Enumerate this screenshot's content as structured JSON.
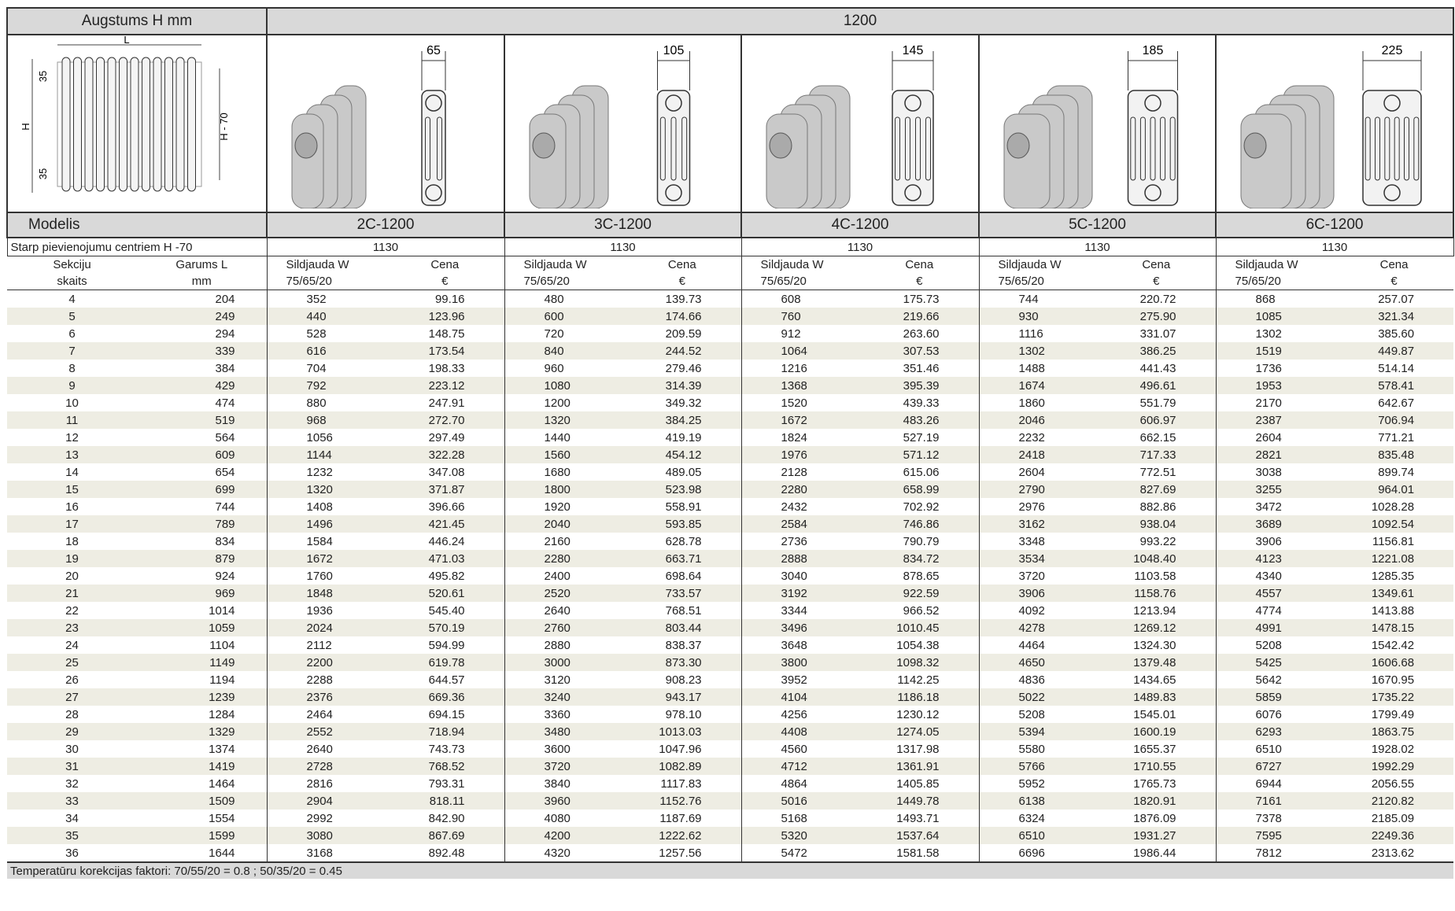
{
  "header": {
    "height_label": "Augstums H mm",
    "height_value": "1200"
  },
  "diagram": {
    "length": "L",
    "height": "H",
    "centers": "H - 70",
    "top": "35",
    "bottom": "35"
  },
  "models_label": "Modelis",
  "centers_label": "Starp pievienojumu centriem H -70",
  "columns": {
    "sections": [
      "Sekciju",
      "skaits"
    ],
    "length": [
      "Garums L",
      "mm"
    ],
    "power": [
      "Sildjauda W",
      "75/65/20"
    ],
    "price": [
      "Cena",
      "€"
    ]
  },
  "models": [
    {
      "name": "2C-1200",
      "depth": "65",
      "centers": "1130"
    },
    {
      "name": "3C-1200",
      "depth": "105",
      "centers": "1130"
    },
    {
      "name": "4C-1200",
      "depth": "145",
      "centers": "1130"
    },
    {
      "name": "5C-1200",
      "depth": "185",
      "centers": "1130"
    },
    {
      "name": "6C-1200",
      "depth": "225",
      "centers": "1130"
    }
  ],
  "rows": [
    [
      "4",
      "204",
      "352",
      "99.16",
      "480",
      "139.73",
      "608",
      "175.73",
      "744",
      "220.72",
      "868",
      "257.07"
    ],
    [
      "5",
      "249",
      "440",
      "123.96",
      "600",
      "174.66",
      "760",
      "219.66",
      "930",
      "275.90",
      "1085",
      "321.34"
    ],
    [
      "6",
      "294",
      "528",
      "148.75",
      "720",
      "209.59",
      "912",
      "263.60",
      "1116",
      "331.07",
      "1302",
      "385.60"
    ],
    [
      "7",
      "339",
      "616",
      "173.54",
      "840",
      "244.52",
      "1064",
      "307.53",
      "1302",
      "386.25",
      "1519",
      "449.87"
    ],
    [
      "8",
      "384",
      "704",
      "198.33",
      "960",
      "279.46",
      "1216",
      "351.46",
      "1488",
      "441.43",
      "1736",
      "514.14"
    ],
    [
      "9",
      "429",
      "792",
      "223.12",
      "1080",
      "314.39",
      "1368",
      "395.39",
      "1674",
      "496.61",
      "1953",
      "578.41"
    ],
    [
      "10",
      "474",
      "880",
      "247.91",
      "1200",
      "349.32",
      "1520",
      "439.33",
      "1860",
      "551.79",
      "2170",
      "642.67"
    ],
    [
      "11",
      "519",
      "968",
      "272.70",
      "1320",
      "384.25",
      "1672",
      "483.26",
      "2046",
      "606.97",
      "2387",
      "706.94"
    ],
    [
      "12",
      "564",
      "1056",
      "297.49",
      "1440",
      "419.19",
      "1824",
      "527.19",
      "2232",
      "662.15",
      "2604",
      "771.21"
    ],
    [
      "13",
      "609",
      "1144",
      "322.28",
      "1560",
      "454.12",
      "1976",
      "571.12",
      "2418",
      "717.33",
      "2821",
      "835.48"
    ],
    [
      "14",
      "654",
      "1232",
      "347.08",
      "1680",
      "489.05",
      "2128",
      "615.06",
      "2604",
      "772.51",
      "3038",
      "899.74"
    ],
    [
      "15",
      "699",
      "1320",
      "371.87",
      "1800",
      "523.98",
      "2280",
      "658.99",
      "2790",
      "827.69",
      "3255",
      "964.01"
    ],
    [
      "16",
      "744",
      "1408",
      "396.66",
      "1920",
      "558.91",
      "2432",
      "702.92",
      "2976",
      "882.86",
      "3472",
      "1028.28"
    ],
    [
      "17",
      "789",
      "1496",
      "421.45",
      "2040",
      "593.85",
      "2584",
      "746.86",
      "3162",
      "938.04",
      "3689",
      "1092.54"
    ],
    [
      "18",
      "834",
      "1584",
      "446.24",
      "2160",
      "628.78",
      "2736",
      "790.79",
      "3348",
      "993.22",
      "3906",
      "1156.81"
    ],
    [
      "19",
      "879",
      "1672",
      "471.03",
      "2280",
      "663.71",
      "2888",
      "834.72",
      "3534",
      "1048.40",
      "4123",
      "1221.08"
    ],
    [
      "20",
      "924",
      "1760",
      "495.82",
      "2400",
      "698.64",
      "3040",
      "878.65",
      "3720",
      "1103.58",
      "4340",
      "1285.35"
    ],
    [
      "21",
      "969",
      "1848",
      "520.61",
      "2520",
      "733.57",
      "3192",
      "922.59",
      "3906",
      "1158.76",
      "4557",
      "1349.61"
    ],
    [
      "22",
      "1014",
      "1936",
      "545.40",
      "2640",
      "768.51",
      "3344",
      "966.52",
      "4092",
      "1213.94",
      "4774",
      "1413.88"
    ],
    [
      "23",
      "1059",
      "2024",
      "570.19",
      "2760",
      "803.44",
      "3496",
      "1010.45",
      "4278",
      "1269.12",
      "4991",
      "1478.15"
    ],
    [
      "24",
      "1104",
      "2112",
      "594.99",
      "2880",
      "838.37",
      "3648",
      "1054.38",
      "4464",
      "1324.30",
      "5208",
      "1542.42"
    ],
    [
      "25",
      "1149",
      "2200",
      "619.78",
      "3000",
      "873.30",
      "3800",
      "1098.32",
      "4650",
      "1379.48",
      "5425",
      "1606.68"
    ],
    [
      "26",
      "1194",
      "2288",
      "644.57",
      "3120",
      "908.23",
      "3952",
      "1142.25",
      "4836",
      "1434.65",
      "5642",
      "1670.95"
    ],
    [
      "27",
      "1239",
      "2376",
      "669.36",
      "3240",
      "943.17",
      "4104",
      "1186.18",
      "5022",
      "1489.83",
      "5859",
      "1735.22"
    ],
    [
      "28",
      "1284",
      "2464",
      "694.15",
      "3360",
      "978.10",
      "4256",
      "1230.12",
      "5208",
      "1545.01",
      "6076",
      "1799.49"
    ],
    [
      "29",
      "1329",
      "2552",
      "718.94",
      "3480",
      "1013.03",
      "4408",
      "1274.05",
      "5394",
      "1600.19",
      "6293",
      "1863.75"
    ],
    [
      "30",
      "1374",
      "2640",
      "743.73",
      "3600",
      "1047.96",
      "4560",
      "1317.98",
      "5580",
      "1655.37",
      "6510",
      "1928.02"
    ],
    [
      "31",
      "1419",
      "2728",
      "768.52",
      "3720",
      "1082.89",
      "4712",
      "1361.91",
      "5766",
      "1710.55",
      "6727",
      "1992.29"
    ],
    [
      "32",
      "1464",
      "2816",
      "793.31",
      "3840",
      "1117.83",
      "4864",
      "1405.85",
      "5952",
      "1765.73",
      "6944",
      "2056.55"
    ],
    [
      "33",
      "1509",
      "2904",
      "818.11",
      "3960",
      "1152.76",
      "5016",
      "1449.78",
      "6138",
      "1820.91",
      "7161",
      "2120.82"
    ],
    [
      "34",
      "1554",
      "2992",
      "842.90",
      "4080",
      "1187.69",
      "5168",
      "1493.71",
      "6324",
      "1876.09",
      "7378",
      "2185.09"
    ],
    [
      "35",
      "1599",
      "3080",
      "867.69",
      "4200",
      "1222.62",
      "5320",
      "1537.64",
      "6510",
      "1931.27",
      "7595",
      "2249.36"
    ],
    [
      "36",
      "1644",
      "3168",
      "892.48",
      "4320",
      "1257.56",
      "5472",
      "1581.58",
      "6696",
      "1986.44",
      "7812",
      "2313.62"
    ]
  ],
  "footer": "Temperatūru korekcijas faktori: 70/55/20 = 0.8 ; 50/35/20 = 0.45"
}
